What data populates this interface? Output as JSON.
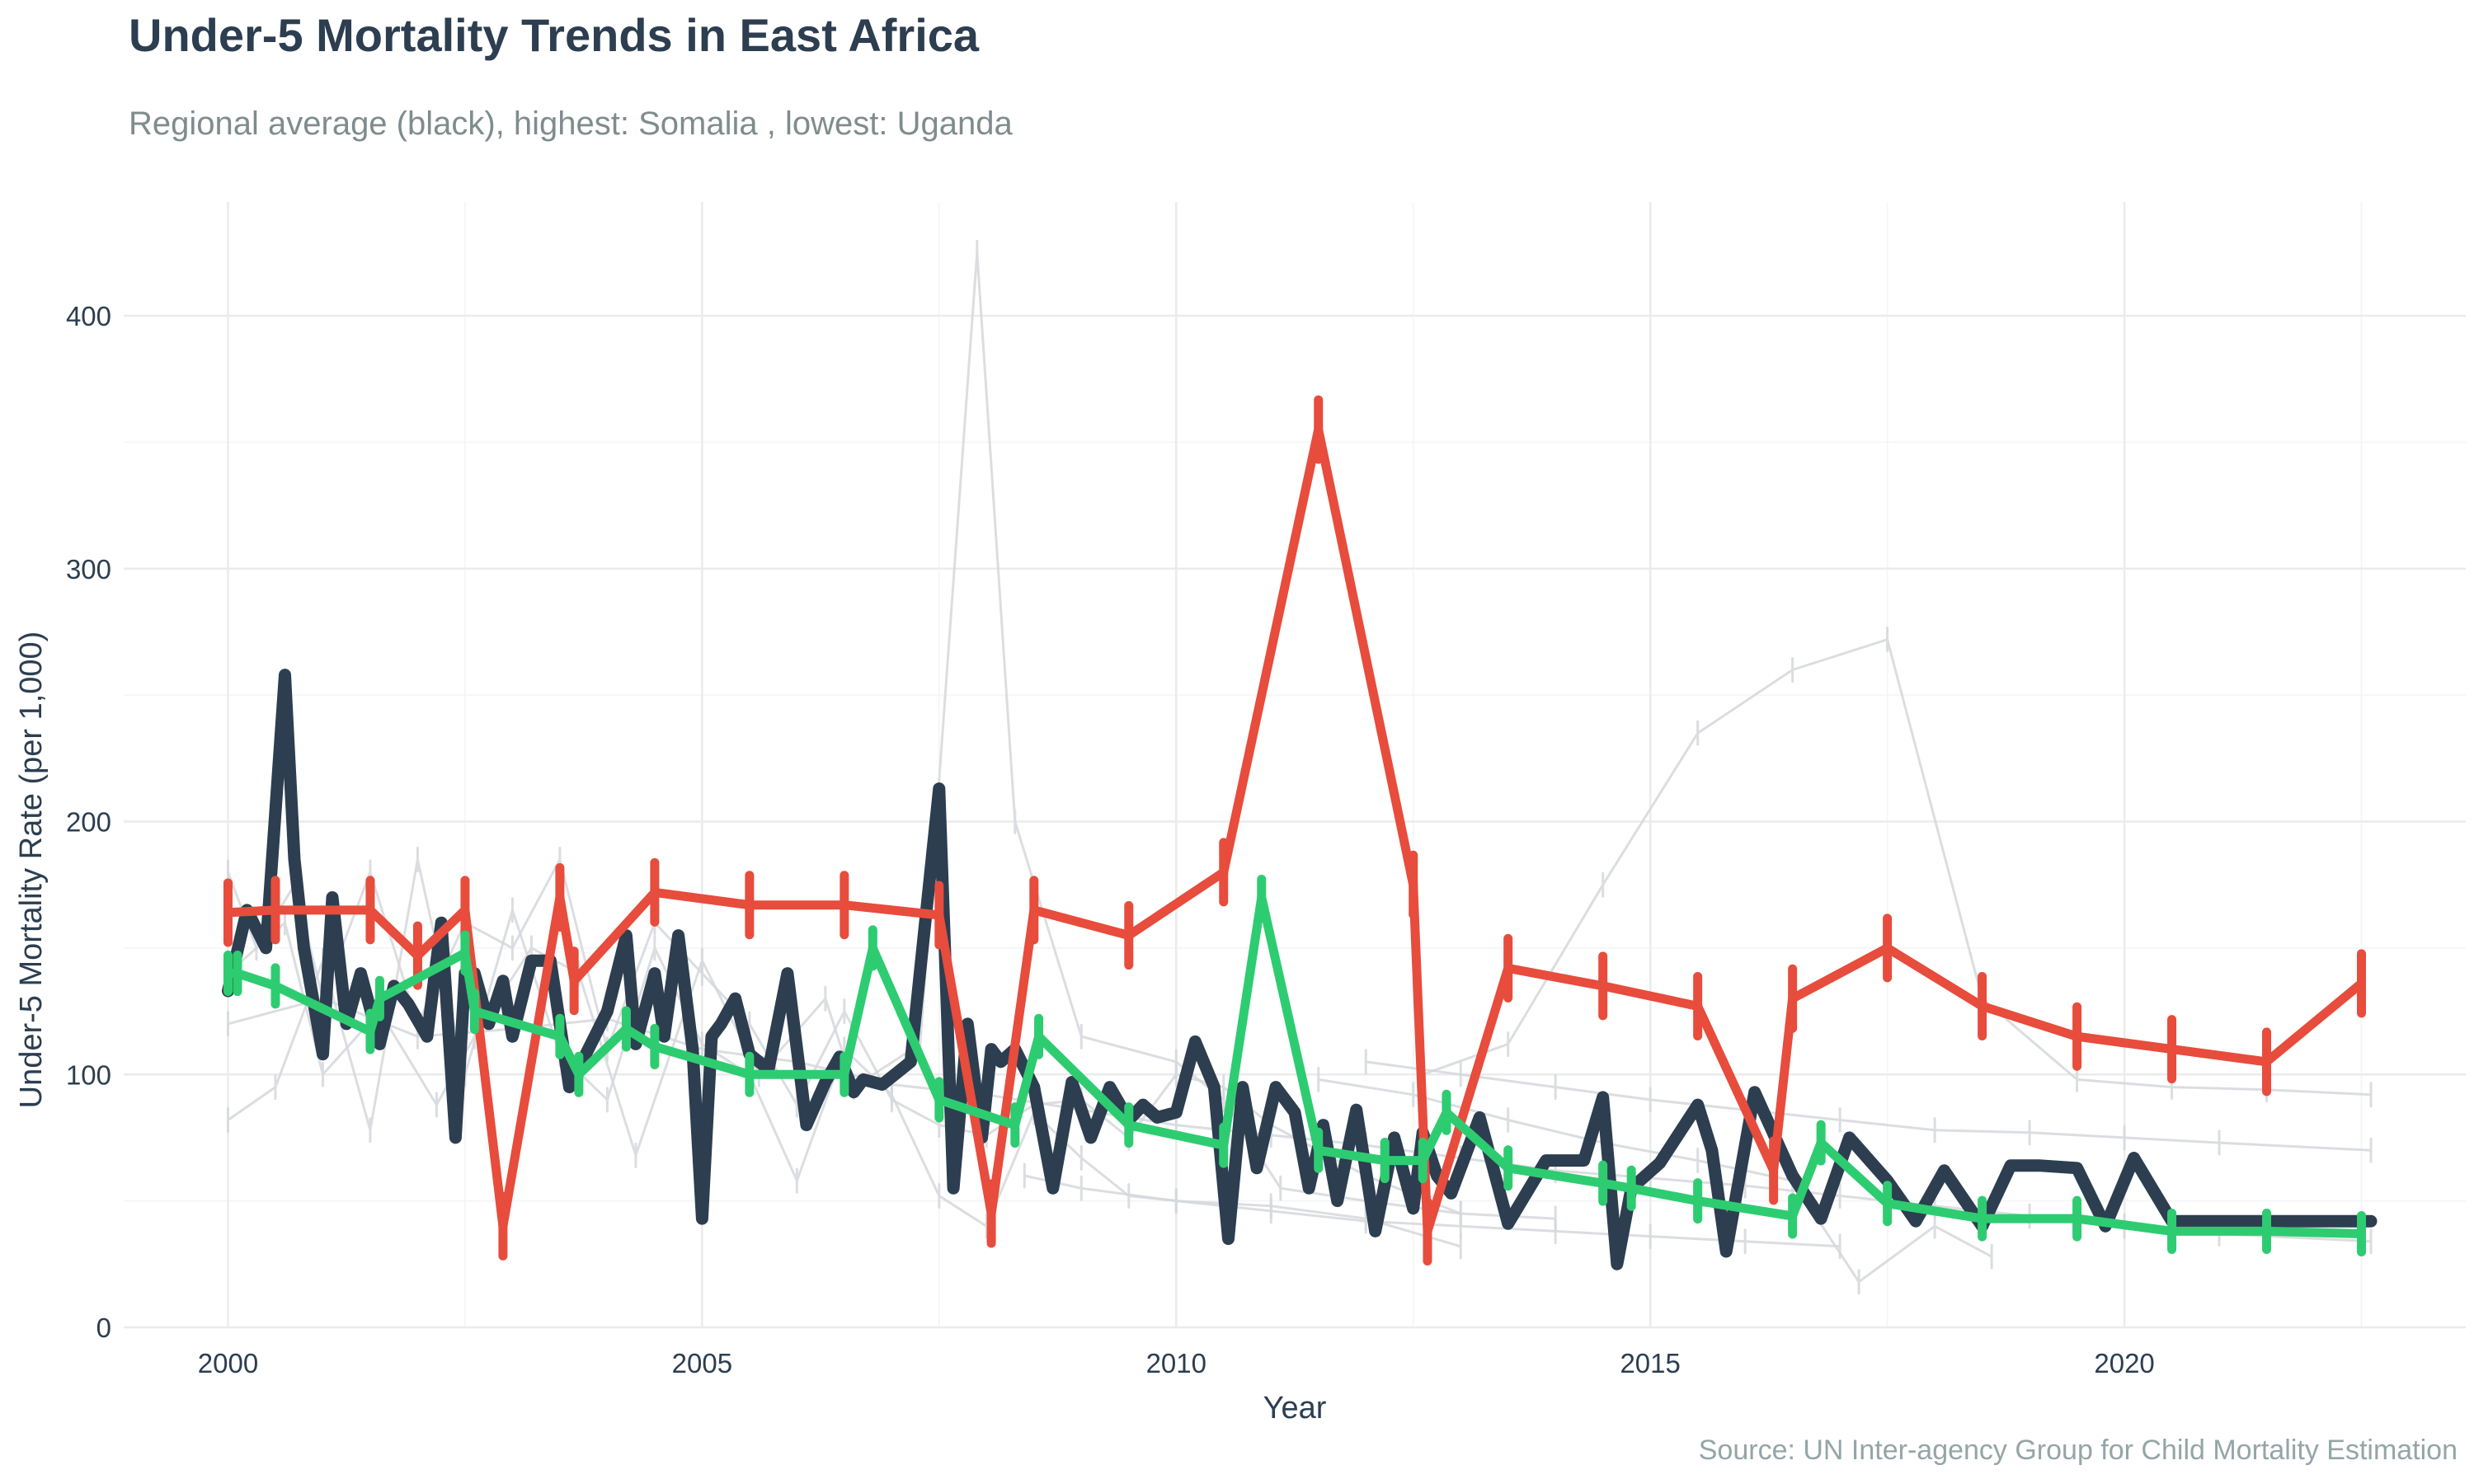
{
  "chart_data": {
    "type": "line",
    "title": "Under-5 Mortality Trends in East Africa",
    "subtitle": "Regional average (black), highest: Somalia , lowest: Uganda",
    "caption": "Source: UN Inter-agency Group for Child Mortality Estimation",
    "xlabel": "Year",
    "ylabel": "Under-5 Mortality Rate (per 1,000)",
    "xlim": [
      1998.9,
      2023.6
    ],
    "ylim": [
      0,
      445
    ],
    "xticks": [
      2000,
      2005,
      2010,
      2015,
      2020
    ],
    "yticks": [
      0,
      100,
      200,
      300,
      400
    ],
    "grid": true,
    "legend": "none",
    "colors": {
      "grid": "#ebebeb",
      "background_series": "#d5d8dc",
      "average": "#2c3e50",
      "highest": "#e74c3c",
      "lowest": "#2ecc71"
    },
    "series": [
      {
        "name": "",
        "role": "background",
        "x": [
          2000,
          2000.5,
          2001,
          2001.5,
          2002,
          2002.5,
          2003,
          2003.5,
          2004,
          2004.5,
          2005,
          2005.5,
          2006,
          2006.5,
          2007,
          2007.5,
          2008,
          2008.5,
          2009,
          2009.5,
          2010,
          2011,
          2012,
          2013
        ],
        "y": [
          82,
          95,
          145,
          78,
          185,
          100,
          165,
          108,
          90,
          150,
          112,
          100,
          58,
          110,
          92,
          52,
          40,
          85,
          67,
          52,
          50,
          48,
          43,
          32
        ]
      },
      {
        "name": "",
        "role": "background",
        "x": [
          2000,
          2000.3,
          2000.7,
          2001,
          2001.5,
          2002,
          2002.5,
          2003,
          2003.5,
          2004,
          2004.5,
          2005,
          2005.5,
          2006,
          2006.5,
          2007,
          2007.5,
          2008,
          2008.5,
          2009,
          2009.5,
          2010,
          2010.5,
          2011,
          2012,
          2013
        ],
        "y": [
          180,
          150,
          175,
          130,
          180,
          120,
          160,
          150,
          185,
          110,
          160,
          140,
          120,
          88,
          125,
          90,
          80,
          76,
          88,
          90,
          75,
          100,
          95,
          80,
          60,
          45
        ]
      },
      {
        "name": "",
        "role": "background",
        "x": [
          2000,
          2000.6,
          2001,
          2001.6,
          2002.2,
          2002.6,
          2003.2,
          2003.7,
          2004.3,
          2005,
          2005.6,
          2006.3,
          2006.6,
          2007.3,
          2007.9,
          2008.3,
          2009,
          2010,
          2010.5,
          2011.1,
          2012,
          2013,
          2014
        ],
        "y": [
          140,
          160,
          100,
          125,
          88,
          115,
          150,
          140,
          68,
          145,
          100,
          130,
          95,
          112,
          425,
          200,
          115,
          105,
          90,
          55,
          50,
          45,
          43
        ]
      },
      {
        "name": "",
        "role": "background",
        "x": [
          2012.6,
          2013.5,
          2014.5,
          2015.5,
          2016.5,
          2017.5,
          2018.5,
          2019.5,
          2020.5,
          2021.5,
          2022.6
        ],
        "y": [
          100,
          112,
          175,
          235,
          260,
          272,
          130,
          98,
          95,
          94,
          92
        ]
      },
      {
        "name": "",
        "role": "background",
        "x": [
          2000,
          2001,
          2002,
          2003,
          2004,
          2005,
          2006,
          2007,
          2008,
          2009,
          2010,
          2011,
          2012,
          2013,
          2014,
          2015,
          2016,
          2017,
          2018,
          2019,
          2020,
          2021,
          2022.6
        ],
        "y": [
          120,
          130,
          115,
          118,
          122,
          110,
          105,
          96,
          92,
          86,
          80,
          76,
          72,
          67,
          62,
          59,
          56,
          52,
          48,
          44,
          40,
          37,
          34
        ]
      },
      {
        "name": "",
        "role": "background",
        "x": [
          2011.5,
          2012.5,
          2013.5,
          2014.5,
          2015.5,
          2016.5,
          2017.2,
          2018,
          2018.6
        ],
        "y": [
          98,
          92,
          82,
          73,
          66,
          58,
          18,
          40,
          28
        ]
      },
      {
        "name": "",
        "role": "background",
        "x": [
          2012,
          2013,
          2014,
          2015,
          2016,
          2017,
          2018,
          2019,
          2020,
          2021,
          2022.6
        ],
        "y": [
          105,
          100,
          95,
          90,
          86,
          82,
          78,
          77,
          75,
          73,
          70
        ]
      },
      {
        "name": "",
        "role": "background",
        "x": [
          2008.4,
          2009,
          2010,
          2011,
          2012,
          2013,
          2014,
          2015,
          2016,
          2017
        ],
        "y": [
          60,
          55,
          50,
          46,
          42,
          40,
          38,
          36,
          34,
          32
        ]
      },
      {
        "name": "",
        "role": "average",
        "x": [
          2000,
          2000.2,
          2000.4,
          2000.6,
          2000.7,
          2000.8,
          2001,
          2001.1,
          2001.25,
          2001.4,
          2001.6,
          2001.75,
          2001.9,
          2002.1,
          2002.25,
          2002.4,
          2002.5,
          2002.6,
          2002.75,
          2002.9,
          2003,
          2003.2,
          2003.4,
          2003.6,
          2003.8,
          2004,
          2004.2,
          2004.3,
          2004.5,
          2004.6,
          2004.75,
          2004.9,
          2005,
          2005.1,
          2005.2,
          2005.35,
          2005.5,
          2005.7,
          2005.9,
          2006.1,
          2006.3,
          2006.45,
          2006.6,
          2006.7,
          2006.9,
          2007.2,
          2007.5,
          2007.65,
          2007.8,
          2007.95,
          2008.05,
          2008.15,
          2008.3,
          2008.5,
          2008.7,
          2008.9,
          2009.1,
          2009.3,
          2009.5,
          2009.65,
          2009.8,
          2010,
          2010.2,
          2010.4,
          2010.55,
          2010.7,
          2010.85,
          2011.05,
          2011.25,
          2011.4,
          2011.55,
          2011.7,
          2011.9,
          2012.1,
          2012.3,
          2012.5,
          2012.6,
          2012.75,
          2012.9,
          2013.2,
          2013.5,
          2013.9,
          2014.3,
          2014.5,
          2014.65,
          2014.8,
          2015.1,
          2015.5,
          2015.65,
          2015.8,
          2016.1,
          2016.5,
          2016.8,
          2017.1,
          2017.5,
          2017.8,
          2018.1,
          2018.5,
          2018.8,
          2019.1,
          2019.5,
          2019.8,
          2020.1,
          2020.5,
          2021,
          2021.5,
          2022,
          2022.5,
          2022.6
        ],
        "y": [
          133,
          165,
          150,
          258,
          185,
          150,
          108,
          170,
          120,
          140,
          112,
          135,
          128,
          115,
          160,
          75,
          140,
          140,
          120,
          137,
          115,
          145,
          145,
          95,
          110,
          125,
          155,
          112,
          140,
          115,
          155,
          110,
          43,
          115,
          120,
          130,
          108,
          102,
          140,
          80,
          97,
          107,
          93,
          98,
          96,
          105,
          213,
          55,
          120,
          75,
          110,
          105,
          110,
          95,
          55,
          97,
          75,
          95,
          82,
          88,
          83,
          85,
          113,
          95,
          35,
          95,
          63,
          95,
          85,
          55,
          80,
          50,
          86,
          38,
          75,
          47,
          77,
          60,
          53,
          83,
          41,
          66,
          66,
          91,
          25,
          55,
          65,
          88,
          70,
          30,
          93,
          60,
          43,
          75,
          58,
          42,
          62,
          40,
          64,
          64,
          63,
          40,
          67,
          42,
          42,
          42,
          42,
          42,
          42
        ]
      },
      {
        "name": "Somalia",
        "role": "highest",
        "x": [
          2000,
          2000.5,
          2001.5,
          2002,
          2002.5,
          2002.9,
          2003.5,
          2003.65,
          2004.5,
          2005.5,
          2006.5,
          2007.5,
          2008.05,
          2008.5,
          2009.5,
          2010.5,
          2011.5,
          2012.5,
          2012.65,
          2013.5,
          2014.5,
          2015.5,
          2016.3,
          2016.5,
          2017.5,
          2018.5,
          2019.5,
          2020.5,
          2021.5,
          2022.5
        ],
        "y": [
          164,
          165,
          165,
          147,
          165,
          40,
          170,
          137,
          172,
          167,
          167,
          163,
          45,
          165,
          155,
          180,
          355,
          175,
          38,
          142,
          135,
          127,
          62,
          130,
          150,
          127,
          115,
          110,
          105,
          136
        ]
      },
      {
        "name": "Uganda",
        "role": "lowest",
        "x": [
          2000,
          2000.1,
          2000.5,
          2001.5,
          2001.6,
          2002.5,
          2002.6,
          2003.5,
          2003.7,
          2004.2,
          2004.5,
          2005.5,
          2006.5,
          2006.8,
          2007.5,
          2008.3,
          2008.55,
          2009.5,
          2010.5,
          2010.9,
          2011.5,
          2012.2,
          2012.6,
          2012.85,
          2013.5,
          2014.5,
          2014.8,
          2015.5,
          2016.5,
          2016.8,
          2017.5,
          2018.5,
          2019.5,
          2020.5,
          2021.5,
          2022.5
        ],
        "y": [
          140,
          140,
          135,
          117,
          130,
          148,
          125,
          115,
          100,
          118,
          111,
          100,
          100,
          150,
          90,
          80,
          115,
          80,
          72,
          170,
          70,
          66,
          66,
          85,
          63,
          57,
          55,
          50,
          44,
          73,
          49,
          43,
          43,
          38,
          38,
          37
        ]
      }
    ]
  }
}
